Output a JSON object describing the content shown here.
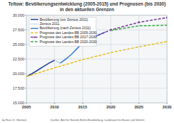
{
  "chart_data": {
    "type": "line",
    "title": "Teltow: Bevölkerungsentwicklung (2005-2015) und Prognosen (bis 2030) in den aktuellen Grenzen",
    "source": "Quellen: Amt für Statistik Berlin-Brandenburg, Landesamt für Bauen und Verkehr",
    "author": "by Hans G. Oberlack",
    "xlim": [
      2005,
      2030
    ],
    "xticks": [
      2005,
      2010,
      2015,
      2020,
      2025,
      2030
    ],
    "ylim": [
      15000,
      30000
    ],
    "yticks": [
      {
        "value": 15000,
        "label": "15.000"
      },
      {
        "value": 17500,
        "label": "17.500"
      },
      {
        "value": 20000,
        "label": "20.000"
      },
      {
        "value": 22500,
        "label": "22.500"
      },
      {
        "value": 25000,
        "label": "25.000"
      },
      {
        "value": 27500,
        "label": "27.500"
      },
      {
        "value": 30000,
        "label": "30.000"
      }
    ],
    "grid": true,
    "legend": "upper left",
    "series": [
      {
        "name": "Bevölkerung (vor Zensus 2011)",
        "color": "#1f3f8f",
        "line_style": "solid",
        "x": [
          2005,
          2006,
          2007,
          2008,
          2009,
          2010
        ],
        "values": [
          19500,
          20000,
          20600,
          21200,
          21800,
          22300
        ]
      },
      {
        "name": "Zensus 2011",
        "color": "#7fb2e5",
        "line_style": "dotted",
        "x": [
          2010,
          2011
        ],
        "values": [
          22300,
          21800
        ]
      },
      {
        "name": "Bevölkerung (nach Zensus 2011)",
        "color": "#3a7fd0",
        "line_style": "solid",
        "x": [
          2011,
          2012,
          2013,
          2014,
          2015,
          2016,
          2017,
          2018,
          2019
        ],
        "values": [
          21800,
          22500,
          23300,
          24300,
          25300,
          25900,
          26300,
          26700,
          27100
        ]
      },
      {
        "name": "Prognose des Landes BB 2005-2030",
        "color": "#e8c02a",
        "line_style": "dashed",
        "x": [
          2005,
          2010,
          2015,
          2020,
          2025,
          2030
        ],
        "values": [
          19500,
          21000,
          22400,
          23600,
          24600,
          25500
        ]
      },
      {
        "name": "Prognose des Landes BB 2017-2030",
        "color": "#7a3f9a",
        "line_style": "dashed",
        "marker": "circle",
        "x": [
          2017,
          2020,
          2025,
          2030
        ],
        "values": [
          26300,
          27500,
          28800,
          29600
        ]
      },
      {
        "name": "Prognose des Landes BB 2020-2030",
        "color": "#3aa84a",
        "line_style": "dashed",
        "x": [
          2020,
          2025,
          2030
        ],
        "values": [
          27400,
          28200,
          28300
        ]
      }
    ]
  }
}
